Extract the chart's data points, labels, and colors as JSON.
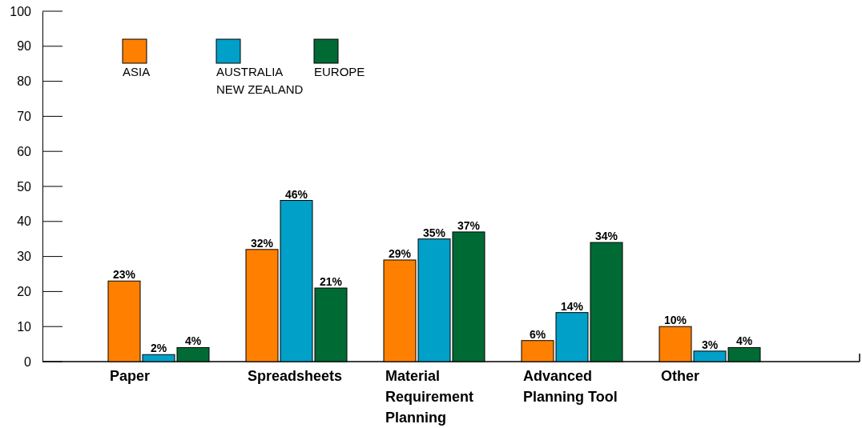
{
  "chart_data": {
    "type": "bar",
    "categories": [
      "Paper",
      "Spreadsheets",
      "Material Requirement Planning",
      "Advanced Planning Tool",
      "Other"
    ],
    "series": [
      {
        "name": "ASIA",
        "color": "#ff8000",
        "values": [
          23,
          32,
          29,
          6,
          10
        ],
        "value_labels": [
          "23%",
          "32%",
          "29%",
          "6%",
          "10%"
        ]
      },
      {
        "name": "AUSTRALIA NEW ZEALAND",
        "color": "#00a0c8",
        "values": [
          2,
          46,
          35,
          14,
          3
        ],
        "value_labels": [
          "2%",
          "46%",
          "35%",
          "14%",
          "3%"
        ]
      },
      {
        "name": "EUROPE",
        "color": "#006a35",
        "values": [
          4,
          21,
          37,
          34,
          4
        ],
        "value_labels": [
          "4%",
          "21%",
          "37%",
          "34%",
          "4%"
        ]
      }
    ],
    "ylim": [
      0,
      100
    ],
    "yticks": [
      0,
      10,
      20,
      30,
      40,
      50,
      60,
      70,
      80,
      90,
      100
    ],
    "grid": false,
    "legend": "top left"
  }
}
